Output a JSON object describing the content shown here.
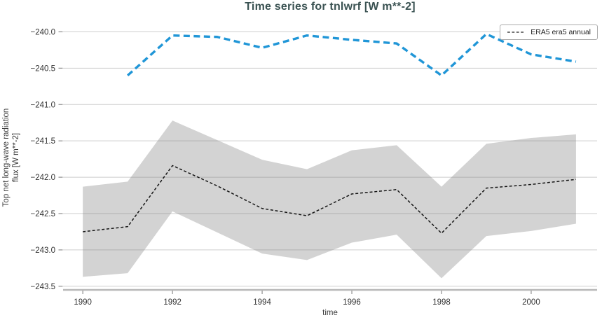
{
  "chart_data": {
    "type": "line",
    "title": "Time series for tnlwrf [W m**-2]",
    "xlabel": "time",
    "ylabel": "Top net long-wave radiation flux [W m**-2]",
    "ylabel_lines": [
      "Top net long-wave radiation",
      "flux [W m**-2]"
    ],
    "legend_entries": [
      "ERA5 era5 annual"
    ],
    "legend_position": "upper right",
    "grid": "horizontal",
    "xlim": [
      1989.56,
      2001.47
    ],
    "ylim": [
      -243.55,
      -239.88
    ],
    "xticks": [
      1990,
      1992,
      1994,
      1996,
      1998,
      2000
    ],
    "yticks": [
      -240.0,
      -240.5,
      -241.0,
      -241.5,
      -242.0,
      -242.5,
      -243.0,
      -243.5
    ],
    "colors": {
      "title": "#3a5252",
      "tick_label": "#333333",
      "gridline": "#cdcdcd",
      "axis_spine": "#b8b8b8",
      "tick_mark": "#8f8f8f",
      "era5_line": "#151515",
      "band_fill": "#808080",
      "blue_line": "#2096d7"
    },
    "series": [
      {
        "id": "era5-annual",
        "label": "ERA5 era5 annual",
        "color": "#151515",
        "linestyle": "dashed",
        "x": [
          1990,
          1991,
          1992,
          1993,
          1994,
          1995,
          1996,
          1997,
          1998,
          1999,
          2000,
          2001
        ],
        "y": [
          -242.75,
          -242.68,
          -241.84,
          -242.12,
          -242.43,
          -242.53,
          -242.23,
          -242.17,
          -242.77,
          -242.15,
          -242.1,
          -242.03
        ],
        "band": {
          "fill": "#808080",
          "opacity": 0.35,
          "upper": [
            -242.13,
            -242.06,
            -241.22,
            -241.49,
            -241.76,
            -241.89,
            -241.63,
            -241.56,
            -242.13,
            -241.54,
            -241.46,
            -241.41
          ],
          "lower": [
            -243.37,
            -243.32,
            -242.47,
            -242.76,
            -243.05,
            -243.14,
            -242.9,
            -242.79,
            -243.39,
            -242.81,
            -242.74,
            -242.64
          ]
        }
      },
      {
        "id": "blue-dashed",
        "label": null,
        "color": "#2096d7",
        "linestyle": "dashed",
        "x": [
          1991,
          1992,
          1993,
          1994,
          1995,
          1996,
          1997,
          1998,
          1999,
          2000,
          2001
        ],
        "y": [
          -240.6,
          -240.05,
          -240.07,
          -240.22,
          -240.05,
          -240.11,
          -240.16,
          -240.6,
          -240.03,
          -240.31,
          -240.41
        ]
      }
    ]
  }
}
